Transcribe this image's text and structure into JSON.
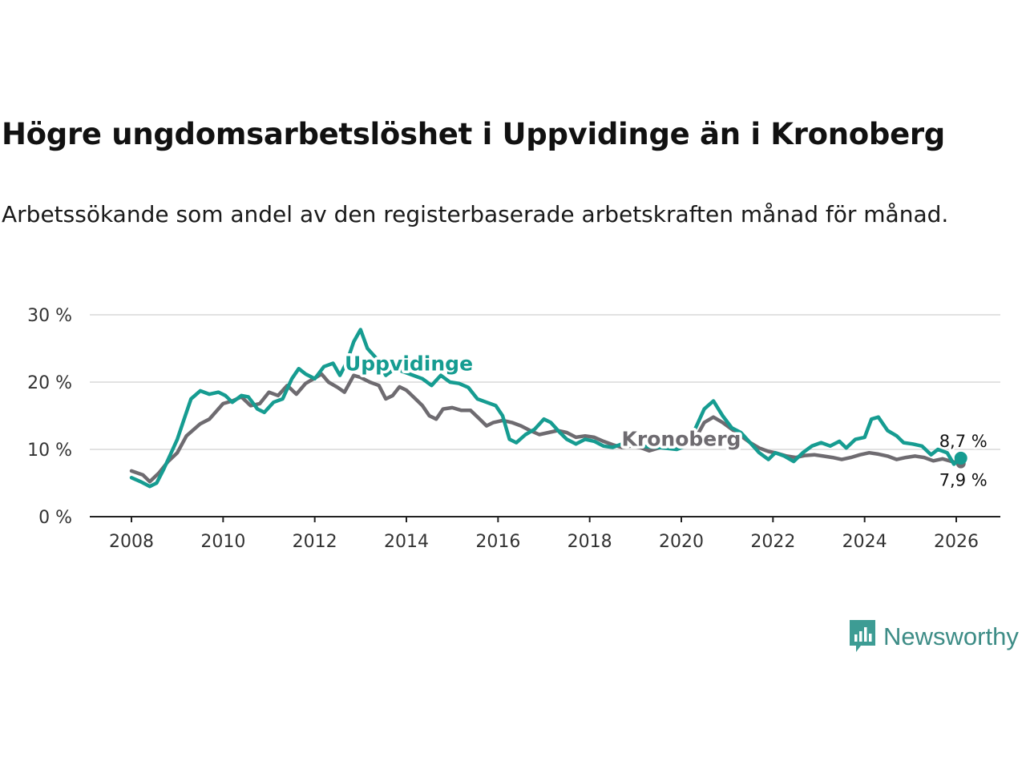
{
  "title": "Högre ungdomsarbetslöshet i Uppvidinge än i Kronoberg",
  "subtitle": "Arbetssökande som andel av den registerbaserade arbetskraften månad för månad.",
  "brand": {
    "name": "Newsworthy",
    "color": "#3d9c94"
  },
  "chart_data": {
    "type": "line",
    "title": "Högre ungdomsarbetslöshet i Uppvidinge än i Kronoberg",
    "xlabel": "",
    "ylabel": "",
    "ylim": [
      0,
      30
    ],
    "xlim": [
      2007.5,
      2027.1
    ],
    "grid": true,
    "y_ticks": [
      {
        "value": 0,
        "label": "0 %"
      },
      {
        "value": 10,
        "label": "10 %"
      },
      {
        "value": 20,
        "label": "20 %"
      },
      {
        "value": 30,
        "label": "30 %"
      }
    ],
    "x_ticks": [
      {
        "value": 2008,
        "label": "2008"
      },
      {
        "value": 2010,
        "label": "2010"
      },
      {
        "value": 2012,
        "label": "2012"
      },
      {
        "value": 2014,
        "label": "2014"
      },
      {
        "value": 2016,
        "label": "2016"
      },
      {
        "value": 2018,
        "label": "2018"
      },
      {
        "value": 2020,
        "label": "2020"
      },
      {
        "value": 2022,
        "label": "2022"
      },
      {
        "value": 2024,
        "label": "2024"
      },
      {
        "value": 2026,
        "label": "2026"
      }
    ],
    "series": [
      {
        "name": "Kronoberg",
        "label": "Kronoberg",
        "color": "#6e6b70",
        "end_label": "7,9 %",
        "points": [
          [
            2008.0,
            6.8
          ],
          [
            2008.25,
            6.2
          ],
          [
            2008.4,
            5.2
          ],
          [
            2008.6,
            6.5
          ],
          [
            2008.8,
            8.2
          ],
          [
            2009.0,
            9.5
          ],
          [
            2009.2,
            12.0
          ],
          [
            2009.5,
            13.8
          ],
          [
            2009.7,
            14.5
          ],
          [
            2010.0,
            16.8
          ],
          [
            2010.2,
            17.2
          ],
          [
            2010.4,
            17.8
          ],
          [
            2010.6,
            16.5
          ],
          [
            2010.8,
            16.8
          ],
          [
            2011.0,
            18.5
          ],
          [
            2011.2,
            18.0
          ],
          [
            2011.4,
            19.5
          ],
          [
            2011.6,
            18.2
          ],
          [
            2011.8,
            19.8
          ],
          [
            2012.0,
            20.6
          ],
          [
            2012.15,
            21.2
          ],
          [
            2012.3,
            20.0
          ],
          [
            2012.5,
            19.2
          ],
          [
            2012.65,
            18.5
          ],
          [
            2012.85,
            21.0
          ],
          [
            2013.0,
            20.7
          ],
          [
            2013.2,
            20.0
          ],
          [
            2013.4,
            19.5
          ],
          [
            2013.55,
            17.5
          ],
          [
            2013.7,
            18.0
          ],
          [
            2013.85,
            19.3
          ],
          [
            2014.0,
            18.8
          ],
          [
            2014.2,
            17.5
          ],
          [
            2014.35,
            16.5
          ],
          [
            2014.5,
            15.0
          ],
          [
            2014.65,
            14.5
          ],
          [
            2014.8,
            16.0
          ],
          [
            2015.0,
            16.2
          ],
          [
            2015.2,
            15.8
          ],
          [
            2015.4,
            15.8
          ],
          [
            2015.6,
            14.5
          ],
          [
            2015.75,
            13.5
          ],
          [
            2015.9,
            14.0
          ],
          [
            2016.1,
            14.3
          ],
          [
            2016.3,
            14.0
          ],
          [
            2016.5,
            13.5
          ],
          [
            2016.7,
            12.8
          ],
          [
            2016.9,
            12.2
          ],
          [
            2017.1,
            12.5
          ],
          [
            2017.3,
            12.8
          ],
          [
            2017.5,
            12.5
          ],
          [
            2017.7,
            11.8
          ],
          [
            2017.9,
            12.0
          ],
          [
            2018.1,
            11.8
          ],
          [
            2018.3,
            11.2
          ],
          [
            2018.5,
            10.7
          ],
          [
            2018.7,
            10.3
          ],
          [
            2018.9,
            10.5
          ],
          [
            2019.1,
            10.3
          ],
          [
            2019.3,
            9.8
          ],
          [
            2019.5,
            10.2
          ],
          [
            2019.7,
            10.5
          ],
          [
            2019.9,
            10.4
          ],
          [
            2020.1,
            10.5
          ],
          [
            2020.3,
            11.5
          ],
          [
            2020.5,
            14.0
          ],
          [
            2020.7,
            14.8
          ],
          [
            2020.9,
            14.0
          ],
          [
            2021.1,
            13.0
          ],
          [
            2021.3,
            12.0
          ],
          [
            2021.5,
            11.0
          ],
          [
            2021.7,
            10.2
          ],
          [
            2021.9,
            9.7
          ],
          [
            2022.1,
            9.4
          ],
          [
            2022.3,
            9.0
          ],
          [
            2022.5,
            8.8
          ],
          [
            2022.7,
            9.1
          ],
          [
            2022.9,
            9.2
          ],
          [
            2023.1,
            9.0
          ],
          [
            2023.3,
            8.8
          ],
          [
            2023.5,
            8.5
          ],
          [
            2023.7,
            8.8
          ],
          [
            2023.9,
            9.2
          ],
          [
            2024.1,
            9.5
          ],
          [
            2024.3,
            9.3
          ],
          [
            2024.5,
            9.0
          ],
          [
            2024.7,
            8.5
          ],
          [
            2024.9,
            8.8
          ],
          [
            2025.1,
            9.0
          ],
          [
            2025.3,
            8.8
          ],
          [
            2025.5,
            8.3
          ],
          [
            2025.7,
            8.6
          ],
          [
            2025.9,
            8.2
          ],
          [
            2026.1,
            7.9
          ]
        ]
      },
      {
        "name": "Uppvidinge",
        "label": "Uppvidinge",
        "color": "#169c91",
        "end_label": "8,7 %",
        "points": [
          [
            2008.0,
            5.8
          ],
          [
            2008.2,
            5.2
          ],
          [
            2008.4,
            4.5
          ],
          [
            2008.55,
            5.0
          ],
          [
            2008.7,
            7.0
          ],
          [
            2008.9,
            10.0
          ],
          [
            2009.0,
            11.5
          ],
          [
            2009.15,
            14.5
          ],
          [
            2009.3,
            17.5
          ],
          [
            2009.5,
            18.7
          ],
          [
            2009.7,
            18.2
          ],
          [
            2009.9,
            18.5
          ],
          [
            2010.05,
            18.0
          ],
          [
            2010.2,
            17.0
          ],
          [
            2010.4,
            18.0
          ],
          [
            2010.55,
            17.8
          ],
          [
            2010.75,
            16.0
          ],
          [
            2010.9,
            15.5
          ],
          [
            2011.1,
            17.0
          ],
          [
            2011.3,
            17.5
          ],
          [
            2011.5,
            20.5
          ],
          [
            2011.65,
            22.0
          ],
          [
            2011.8,
            21.2
          ],
          [
            2012.0,
            20.5
          ],
          [
            2012.2,
            22.3
          ],
          [
            2012.4,
            22.8
          ],
          [
            2012.55,
            21.0
          ],
          [
            2012.7,
            23.0
          ],
          [
            2012.85,
            26.0
          ],
          [
            2013.0,
            27.8
          ],
          [
            2013.15,
            25.0
          ],
          [
            2013.35,
            23.5
          ],
          [
            2013.55,
            21.0
          ],
          [
            2013.75,
            22.0
          ],
          [
            2013.95,
            21.5
          ],
          [
            2014.15,
            21.0
          ],
          [
            2014.35,
            20.5
          ],
          [
            2014.55,
            19.5
          ],
          [
            2014.75,
            21.0
          ],
          [
            2014.95,
            20.0
          ],
          [
            2015.15,
            19.8
          ],
          [
            2015.35,
            19.2
          ],
          [
            2015.55,
            17.5
          ],
          [
            2015.75,
            17.0
          ],
          [
            2015.95,
            16.5
          ],
          [
            2016.1,
            15.0
          ],
          [
            2016.25,
            11.5
          ],
          [
            2016.4,
            11.0
          ],
          [
            2016.6,
            12.2
          ],
          [
            2016.8,
            13.0
          ],
          [
            2017.0,
            14.5
          ],
          [
            2017.15,
            14.0
          ],
          [
            2017.35,
            12.5
          ],
          [
            2017.5,
            11.5
          ],
          [
            2017.7,
            10.8
          ],
          [
            2017.9,
            11.5
          ],
          [
            2018.1,
            11.2
          ],
          [
            2018.3,
            10.5
          ],
          [
            2018.5,
            10.3
          ],
          [
            2018.7,
            10.8
          ],
          [
            2019.0,
            10.5
          ],
          [
            2019.5,
            10.3
          ],
          [
            2019.9,
            10.0
          ],
          [
            2020.1,
            10.5
          ],
          [
            2020.3,
            13.0
          ],
          [
            2020.5,
            16.0
          ],
          [
            2020.7,
            17.2
          ],
          [
            2020.9,
            15.0
          ],
          [
            2021.1,
            13.2
          ],
          [
            2021.3,
            12.5
          ],
          [
            2021.5,
            11.0
          ],
          [
            2021.7,
            9.5
          ],
          [
            2021.9,
            8.5
          ],
          [
            2022.05,
            9.5
          ],
          [
            2022.25,
            9.0
          ],
          [
            2022.45,
            8.2
          ],
          [
            2022.65,
            9.5
          ],
          [
            2022.85,
            10.5
          ],
          [
            2023.05,
            11.0
          ],
          [
            2023.25,
            10.5
          ],
          [
            2023.45,
            11.2
          ],
          [
            2023.6,
            10.2
          ],
          [
            2023.8,
            11.5
          ],
          [
            2024.0,
            11.8
          ],
          [
            2024.15,
            14.5
          ],
          [
            2024.3,
            14.8
          ],
          [
            2024.5,
            12.8
          ],
          [
            2024.7,
            12.0
          ],
          [
            2024.85,
            11.0
          ],
          [
            2025.05,
            10.8
          ],
          [
            2025.25,
            10.5
          ],
          [
            2025.45,
            9.2
          ],
          [
            2025.6,
            10.0
          ],
          [
            2025.8,
            9.5
          ],
          [
            2025.95,
            7.8
          ],
          [
            2026.1,
            8.7
          ]
        ]
      }
    ]
  }
}
